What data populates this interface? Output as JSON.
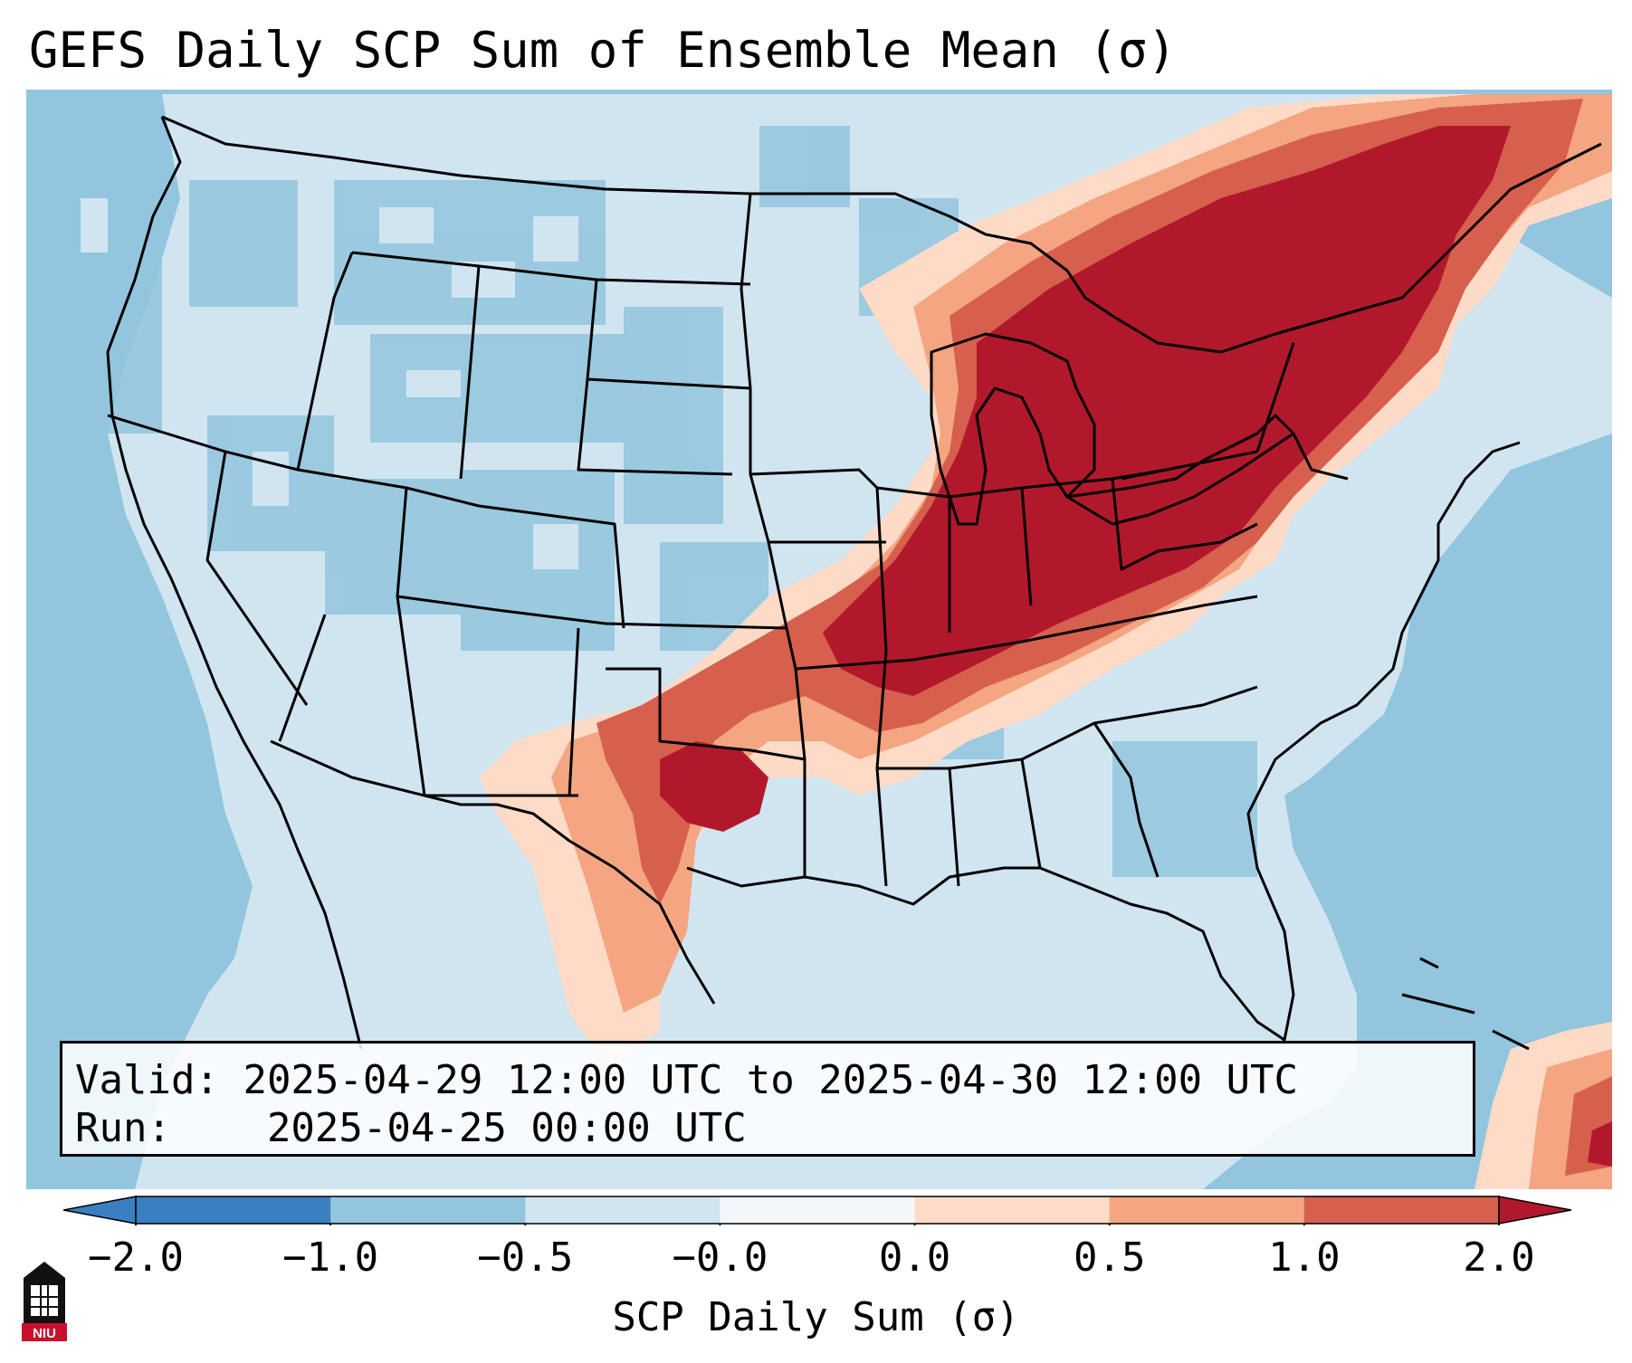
{
  "title": "GEFS Daily SCP Sum of Ensemble Mean (σ)",
  "info": {
    "valid_label": "Valid:",
    "valid_value": "2025-04-29 12:00 UTC to 2025-04-30 12:00 UTC",
    "run_label": "Run:",
    "run_value": "2025-04-25 00:00 UTC"
  },
  "colorbar": {
    "label": "SCP Daily Sum (σ)",
    "ticks": [
      "−2.0",
      "−1.0",
      "−0.5",
      "−0.0",
      "0.0",
      "0.5",
      "1.0",
      "2.0"
    ],
    "colors": [
      "#3a7fbf",
      "#92c5de",
      "#d1e5f0",
      "#f3f7fb",
      "#fddbc7",
      "#f4a582",
      "#d6604d",
      "#b2182b"
    ]
  },
  "logo": {
    "text": "NIU"
  },
  "colors": {
    "ocean": "#92c5de",
    "land_neutral": "#d1e5f0",
    "high": "#b2182b",
    "mid_high": "#d6604d",
    "mid": "#f4a582",
    "low": "#fddbc7"
  }
}
